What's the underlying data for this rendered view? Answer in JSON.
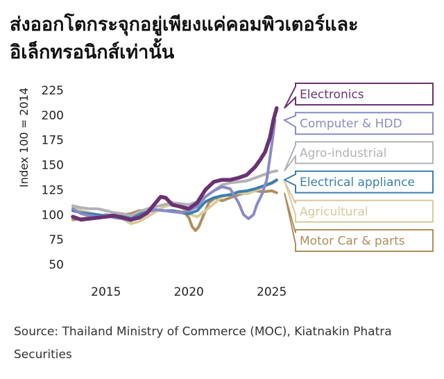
{
  "title": "ส่งออกโตกระจุกอยู่เพียงแค่คอมพิวเตอร์และอิเล็กทรอนิกส์เท่านั้น",
  "source": "Source: Thailand Ministry of Commerce (MOC), Kiatnakin Phatra Securities",
  "chart_data": {
    "type": "line",
    "ylabel": "Index 100 = 2014",
    "ylim": [
      50,
      225
    ],
    "xlim": [
      2013,
      2025.6
    ],
    "yticks": [
      50,
      75,
      100,
      125,
      150,
      175,
      200,
      225
    ],
    "xticks": [
      2015,
      2020,
      2025
    ],
    "grid": false,
    "legend_placement": "right",
    "series": [
      {
        "name": "Motor Car & parts",
        "color": "#b08d5c",
        "x": [
          2013,
          2013.5,
          2014,
          2014.5,
          2015,
          2015.5,
          2016,
          2016.5,
          2017,
          2017.5,
          2018,
          2018.5,
          2019,
          2019.5,
          2019.8,
          2020,
          2020.2,
          2020.4,
          2020.6,
          2020.9,
          2021.2,
          2021.6,
          2022,
          2022.5,
          2023,
          2023.5,
          2024,
          2024.5,
          2025,
          2025.3
        ],
        "y": [
          95,
          96,
          97,
          98,
          100,
          99,
          100,
          101,
          104,
          104,
          105,
          104,
          104,
          103,
          101,
          97,
          88,
          84,
          88,
          100,
          112,
          117,
          114,
          117,
          120,
          122,
          124,
          123,
          124,
          122
        ]
      },
      {
        "name": "Agricultural",
        "color": "#d6cb9c",
        "x": [
          2013,
          2013.5,
          2014,
          2014.5,
          2015,
          2015.5,
          2016,
          2016.5,
          2017,
          2017.5,
          2018,
          2018.5,
          2019,
          2019.5,
          2020,
          2020.5,
          2021,
          2021.5,
          2022,
          2022.5,
          2023,
          2023.5,
          2024,
          2024.5,
          2025,
          2025.3
        ],
        "y": [
          108,
          104,
          102,
          100,
          99,
          97,
          96,
          91,
          93,
          98,
          103,
          108,
          110,
          108,
          101,
          98,
          104,
          111,
          118,
          121,
          122,
          121,
          124,
          128,
          131,
          134
        ]
      },
      {
        "name": "Electrical appliance",
        "color": "#3a7fb0",
        "x": [
          2013,
          2013.5,
          2014,
          2014.5,
          2015,
          2015.5,
          2016,
          2016.5,
          2017,
          2017.5,
          2018,
          2018.5,
          2019,
          2019.5,
          2020,
          2020.5,
          2021,
          2021.5,
          2022,
          2022.5,
          2023,
          2023.5,
          2024,
          2024.5,
          2025,
          2025.3
        ],
        "y": [
          104,
          102,
          101,
          100,
          99,
          100,
          98,
          97,
          101,
          103,
          105,
          104,
          104,
          102,
          101,
          104,
          113,
          117,
          119,
          120,
          123,
          124,
          126,
          129,
          132,
          135
        ]
      },
      {
        "name": "Agro-industrial",
        "color": "#b3b1b7",
        "x": [
          2013,
          2013.5,
          2014,
          2014.5,
          2015,
          2015.5,
          2016,
          2016.5,
          2017,
          2017.5,
          2018,
          2018.5,
          2019,
          2019.5,
          2020,
          2020.5,
          2021,
          2021.5,
          2022,
          2022.5,
          2023,
          2023.5,
          2024,
          2024.5,
          2025,
          2025.3
        ],
        "y": [
          109,
          107,
          106,
          106,
          104,
          102,
          101,
          99,
          103,
          106,
          108,
          110,
          112,
          111,
          110,
          113,
          118,
          124,
          130,
          132,
          133,
          134,
          137,
          140,
          143,
          144
        ]
      },
      {
        "name": "Computer & HDD",
        "color": "#8b8ac7",
        "x": [
          2013,
          2013.5,
          2014,
          2014.5,
          2015,
          2015.5,
          2016,
          2016.5,
          2017,
          2017.5,
          2018,
          2018.5,
          2019,
          2019.5,
          2020,
          2020.5,
          2021,
          2021.5,
          2022,
          2022.5,
          2023,
          2023.3,
          2023.6,
          2023.9,
          2024.1,
          2024.4,
          2024.7,
          2025,
          2025.2
        ],
        "y": [
          106,
          101,
          99,
          98,
          99,
          97,
          96,
          94,
          98,
          103,
          105,
          104,
          103,
          102,
          104,
          108,
          118,
          124,
          128,
          126,
          112,
          100,
          96,
          100,
          110,
          120,
          135,
          170,
          195
        ]
      },
      {
        "name": "Electronics",
        "color": "#6a3272",
        "x": [
          2013,
          2013.5,
          2014,
          2014.5,
          2015,
          2015.5,
          2016,
          2016.5,
          2017,
          2017.5,
          2018,
          2018.3,
          2018.6,
          2019,
          2019.5,
          2020,
          2020.5,
          2021,
          2021.5,
          2022,
          2022.5,
          2023,
          2023.5,
          2024,
          2024.3,
          2024.6,
          2024.9,
          2025.1,
          2025.3
        ],
        "y": [
          98,
          95,
          96,
          97,
          98,
          99,
          97,
          95,
          97,
          102,
          112,
          118,
          117,
          110,
          108,
          106,
          112,
          125,
          133,
          135,
          135,
          137,
          140,
          148,
          155,
          163,
          178,
          195,
          207
        ]
      }
    ],
    "legend": [
      {
        "label": "Electronics",
        "color": "#6a3272",
        "anchor_y": 207
      },
      {
        "label": "Computer & HDD",
        "color": "#8b8ac7",
        "anchor_y": 195
      },
      {
        "label": "Agro-industrial",
        "color": "#b3b1b7",
        "anchor_y": 144
      },
      {
        "label": "Electrical appliance",
        "color": "#3a7fb0",
        "anchor_y": 135
      },
      {
        "label": "Agricultural",
        "color": "#d6cb9c",
        "anchor_y": 134
      },
      {
        "label": "Motor Car & parts",
        "color": "#b08d5c",
        "anchor_y": 122
      }
    ]
  }
}
